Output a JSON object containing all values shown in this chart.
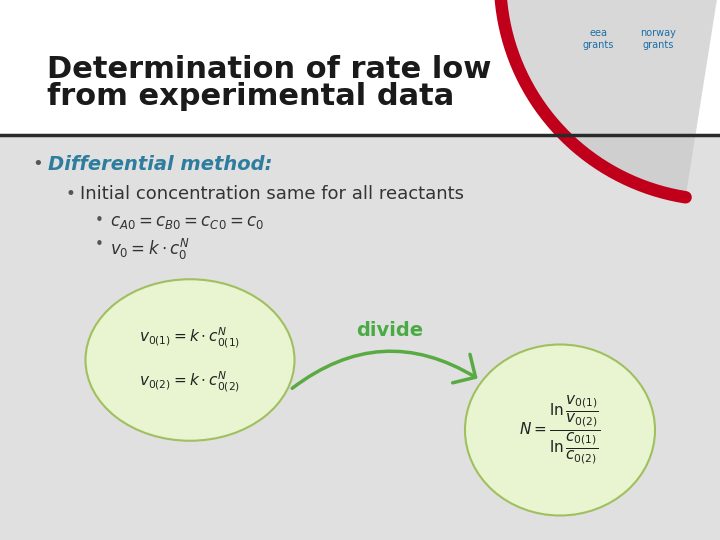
{
  "title_line1": "Determination of rate low",
  "title_line2": "from experimental data",
  "bg_color_top": "#ffffff",
  "bg_color_bottom": "#d9d9d9",
  "header_bg": "#ffffff",
  "slide_bg": "#e8e8e8",
  "title_color": "#1a1a1a",
  "bullet1": "Differential method:",
  "bullet1_color": "#2e7d9e",
  "bullet2": "Initial concentration same for all reactants",
  "bullet2_color": "#333333",
  "sub_bullet1": "cₐ₀ = cʙ₀ = cᴄ₀ = c₀",
  "sub_bullet2": "v₀ = k·c₀ᴺ",
  "divide_label": "divide",
  "divide_color": "#4aaa44",
  "circle_fill": "#e8f5d0",
  "circle_edge": "#a0c060",
  "arrow_color": "#5aaa44",
  "red_curve_color": "#c0001a",
  "formula1_left": "$v_{0(1)} = k \\cdot c_{0(1)}^N$",
  "formula2_left": "$v_{0(2)} = k \\cdot c_{0(2)}^N$",
  "formula_right": "$N = \\dfrac{\\ln \\dfrac{v_{0(1)}}{v_{0(2)}}}{\\ln \\dfrac{c_{0(1)}}{c_{0(2)}}}$"
}
